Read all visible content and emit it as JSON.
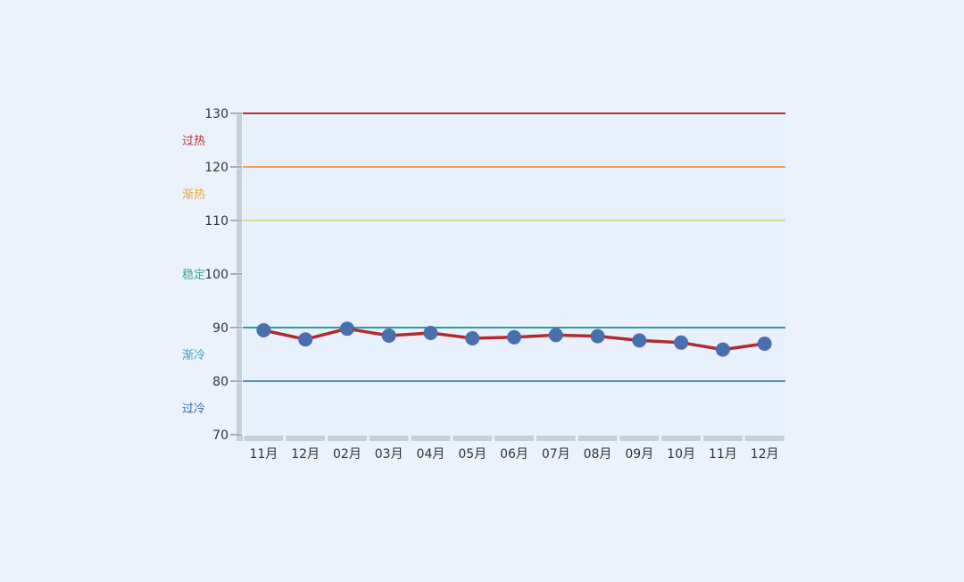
{
  "chart_data": {
    "type": "line",
    "categories": [
      "11月",
      "12月",
      "02月",
      "03月",
      "04月",
      "05月",
      "06月",
      "07月",
      "08月",
      "09月",
      "10月",
      "11月",
      "12月"
    ],
    "values": [
      89.5,
      87.8,
      89.8,
      88.5,
      89.0,
      88.0,
      88.2,
      88.6,
      88.4,
      87.6,
      87.2,
      85.9,
      87.0
    ],
    "ylim": [
      70,
      130
    ],
    "yticks": [
      70,
      80,
      90,
      100,
      110,
      120,
      130
    ],
    "title": "",
    "xlabel": "",
    "ylabel": "",
    "grid": false,
    "line_color": "#b22a2c",
    "marker_color": "#4a6fae",
    "axis_color": "#c3cfd9",
    "plot_background": "#e8f1fb",
    "reference_lines": [
      {
        "value": 130,
        "color": "#b8323a"
      },
      {
        "value": 120,
        "color": "#f0a05a"
      },
      {
        "value": 110,
        "color": "#cfe08e"
      },
      {
        "value": 90,
        "color": "#2a9fa6"
      },
      {
        "value": 80,
        "color": "#4a93b8"
      }
    ],
    "zones": [
      {
        "label": "过热",
        "center": 125,
        "color": "#b8323a"
      },
      {
        "label": "渐热",
        "center": 115,
        "color": "#e9a93a"
      },
      {
        "label": "稳定",
        "center": 100,
        "color": "#3aa88a"
      },
      {
        "label": "渐冷",
        "center": 85,
        "color": "#36a2c3"
      },
      {
        "label": "过冷",
        "center": 75,
        "color": "#2f6f9a"
      }
    ]
  }
}
